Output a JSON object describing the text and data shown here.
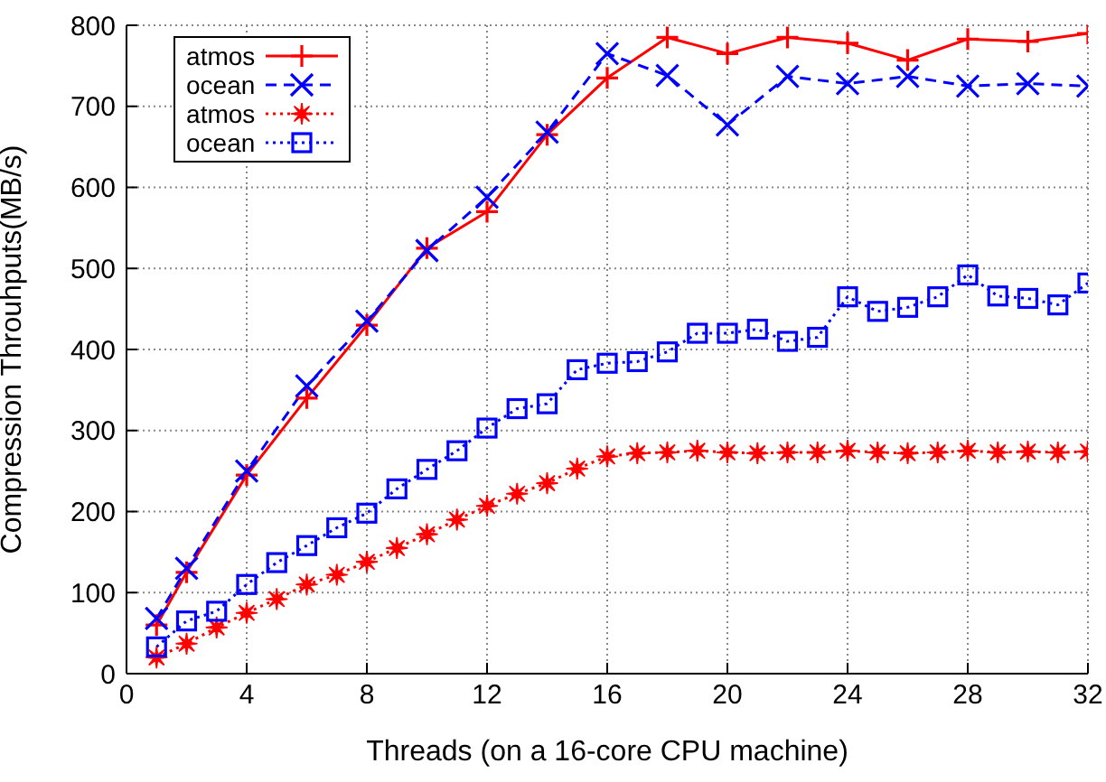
{
  "chart_data": {
    "type": "line",
    "xlabel": "Threads (on a 16-core CPU machine)",
    "ylabel": "Compression Throuhputs(MB/s)",
    "xlim": [
      0,
      32
    ],
    "xticks": [
      0,
      4,
      8,
      12,
      16,
      20,
      24,
      28,
      32
    ],
    "ylim": [
      0,
      800
    ],
    "yticks": [
      0,
      100,
      200,
      300,
      400,
      500,
      600,
      700,
      800
    ],
    "grid": true,
    "legend": "top left",
    "series": [
      {
        "name": "atmos",
        "color": "#ff0000",
        "marker": "plus",
        "line_style": "solid",
        "x": [
          1,
          2,
          4,
          6,
          8,
          10,
          12,
          14,
          16,
          18,
          20,
          22,
          24,
          26,
          28,
          30,
          32
        ],
        "values": [
          60,
          125,
          245,
          340,
          430,
          525,
          570,
          665,
          735,
          785,
          765,
          785,
          778,
          757,
          783,
          780,
          790
        ]
      },
      {
        "name": "ocean",
        "color": "#0000ff",
        "marker": "cross",
        "line_style": "dashed",
        "x": [
          1,
          2,
          4,
          6,
          8,
          10,
          12,
          14,
          16,
          18,
          20,
          22,
          24,
          26,
          28,
          30,
          32
        ],
        "values": [
          68,
          130,
          250,
          355,
          435,
          522,
          588,
          668,
          765,
          738,
          677,
          737,
          728,
          737,
          725,
          728,
          725
        ]
      },
      {
        "name": "atmos",
        "color": "#ff0000",
        "marker": "star",
        "line_style": "dotted",
        "x": [
          1,
          2,
          3,
          4,
          5,
          6,
          7,
          8,
          9,
          10,
          11,
          12,
          13,
          14,
          15,
          16,
          17,
          18,
          19,
          20,
          21,
          22,
          23,
          24,
          25,
          26,
          27,
          28,
          29,
          30,
          31,
          32
        ],
        "values": [
          20,
          37,
          57,
          75,
          92,
          110,
          122,
          138,
          155,
          172,
          190,
          207,
          222,
          235,
          253,
          268,
          272,
          273,
          275,
          273,
          272,
          273,
          273,
          275,
          273,
          272,
          273,
          275,
          273,
          274,
          273,
          274
        ]
      },
      {
        "name": "ocean",
        "color": "#0000ff",
        "marker": "square",
        "line_style": "dotted",
        "x": [
          1,
          2,
          3,
          4,
          5,
          6,
          7,
          8,
          9,
          10,
          11,
          12,
          13,
          14,
          15,
          16,
          17,
          18,
          19,
          20,
          21,
          22,
          23,
          24,
          25,
          26,
          27,
          28,
          29,
          30,
          31,
          32
        ],
        "values": [
          33,
          65,
          77,
          110,
          137,
          158,
          180,
          198,
          228,
          252,
          275,
          303,
          327,
          333,
          375,
          383,
          385,
          397,
          420,
          420,
          425,
          410,
          415,
          465,
          447,
          452,
          465,
          492,
          466,
          463,
          455,
          482
        ]
      }
    ]
  }
}
